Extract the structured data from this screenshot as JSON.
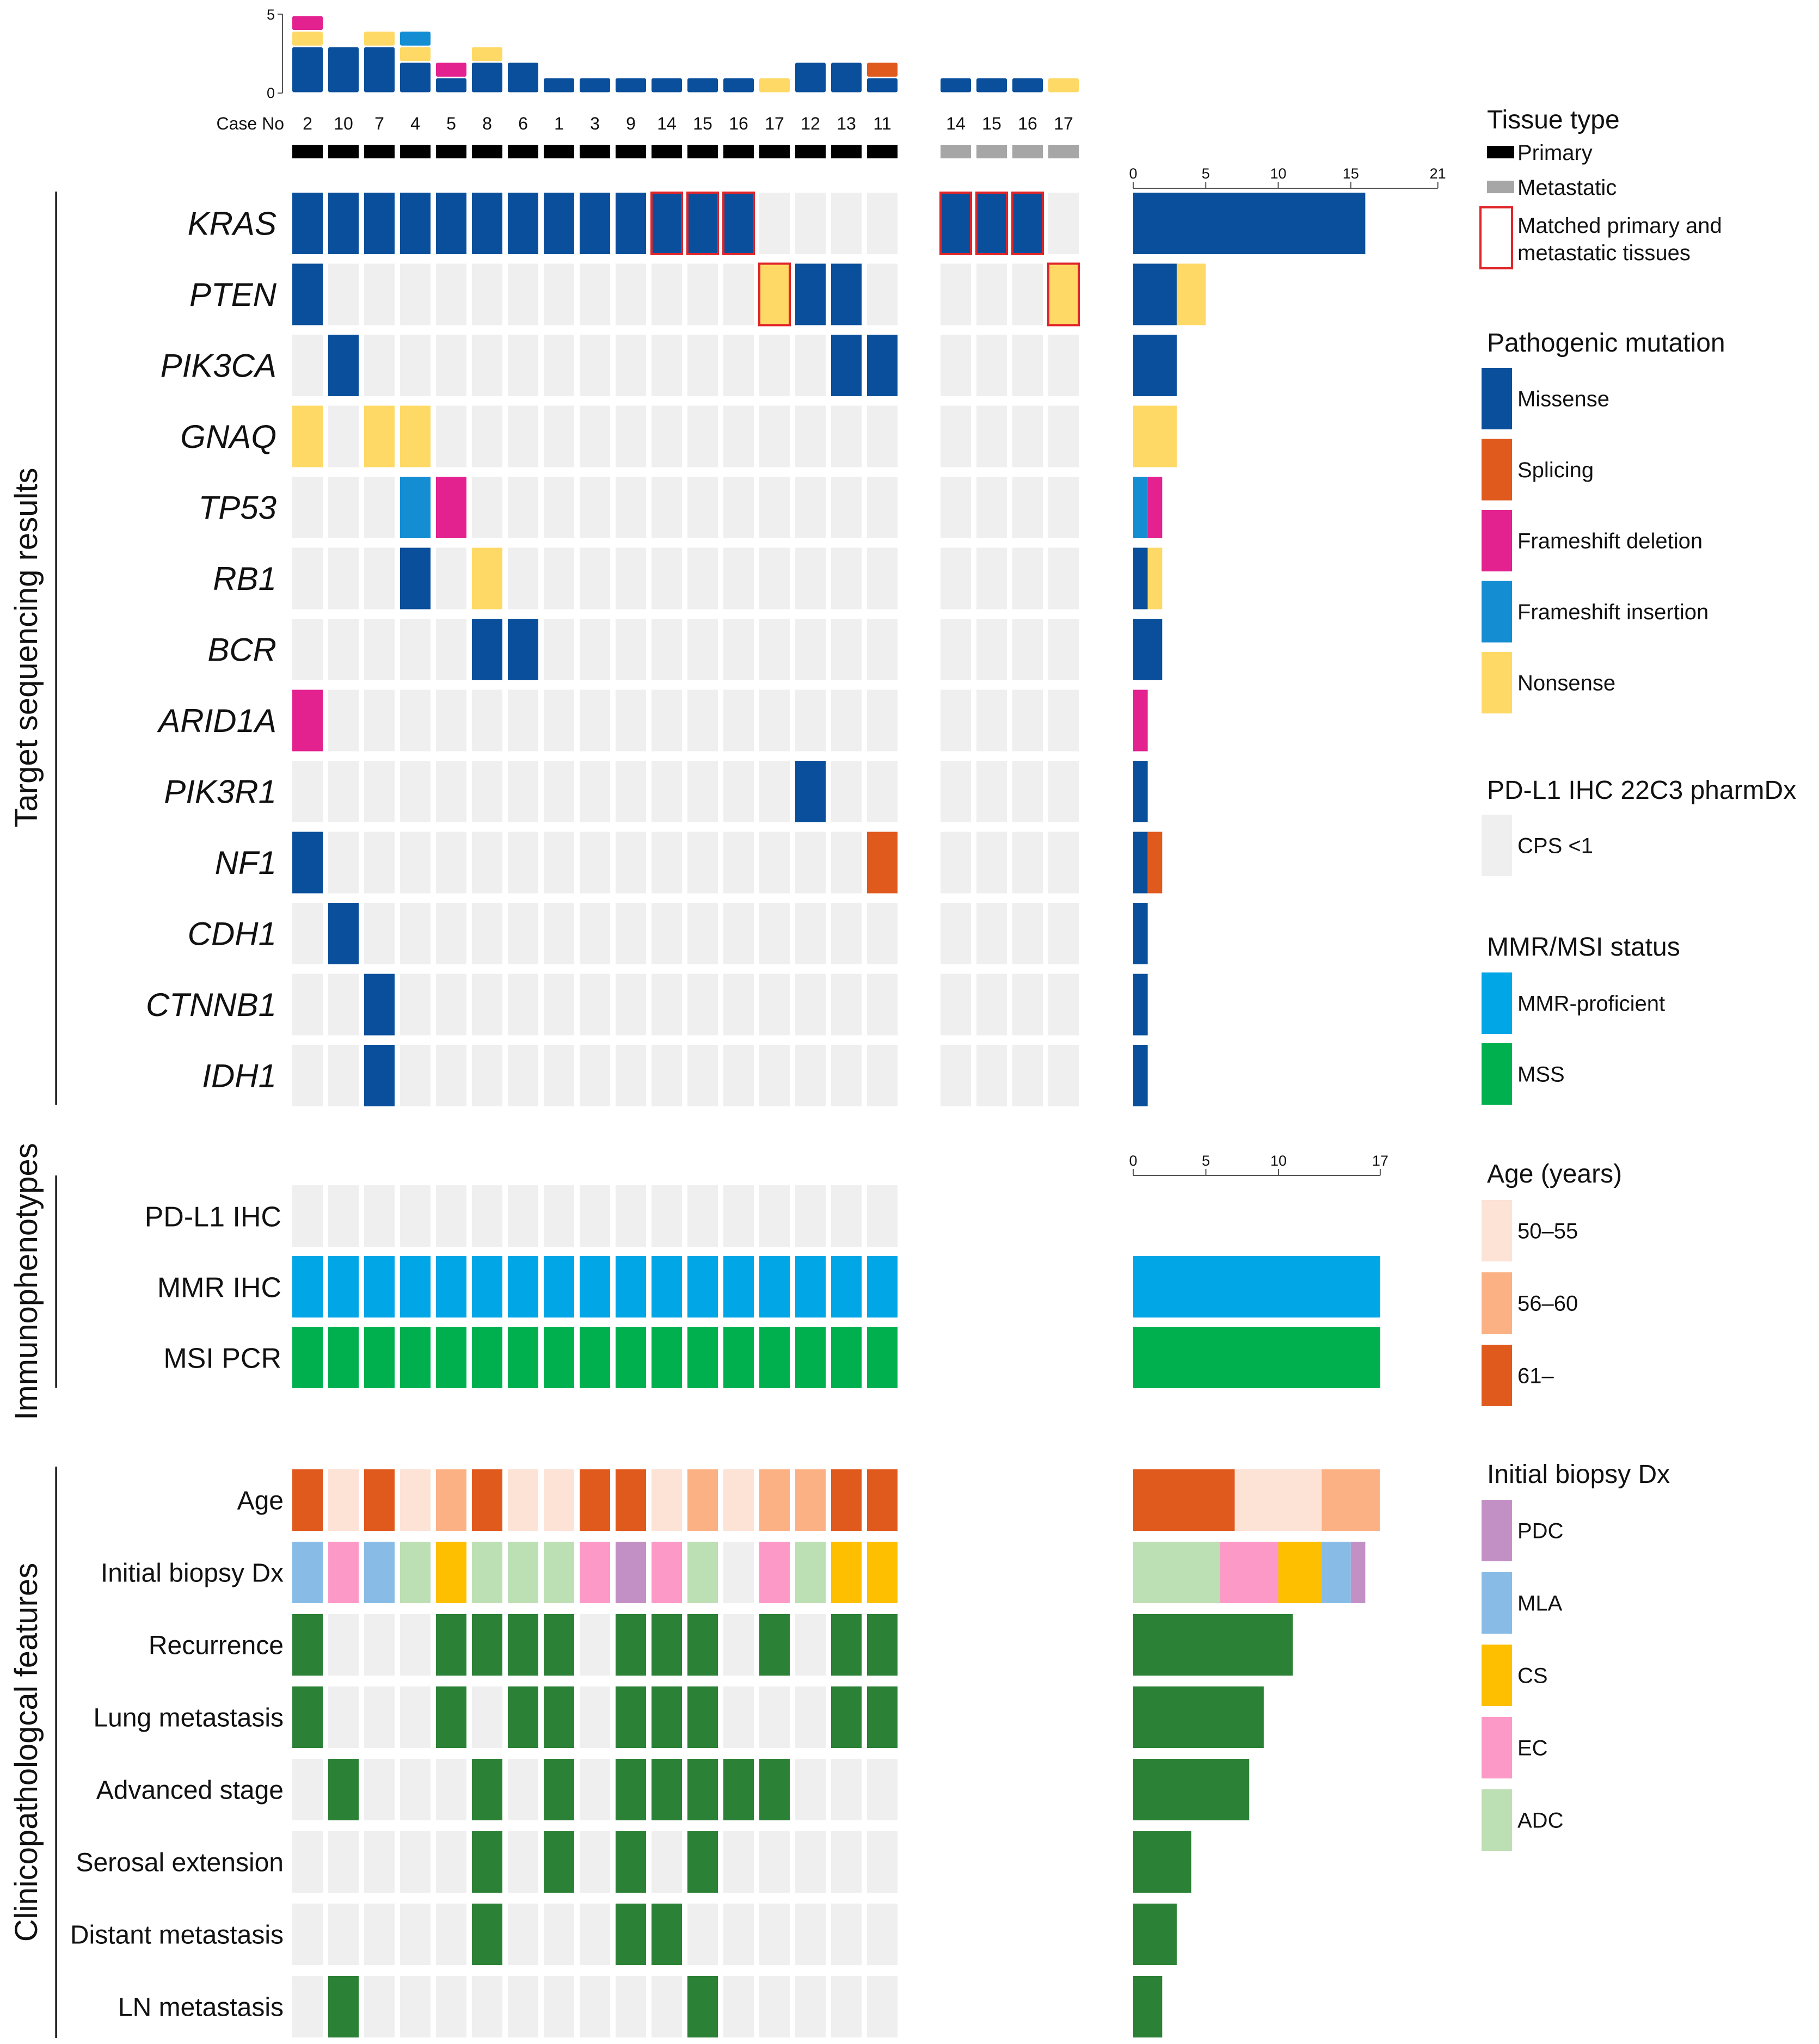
{
  "chart_data": {
    "type": "heatmap",
    "case_label": "Case No",
    "cases_primary": [
      "2",
      "10",
      "7",
      "4",
      "5",
      "8",
      "6",
      "1",
      "3",
      "9",
      "14",
      "15",
      "16",
      "17",
      "12",
      "13",
      "11"
    ],
    "cases_metastatic": [
      "14",
      "15",
      "16",
      "17"
    ],
    "top_axis": {
      "max": 5,
      "ticks": [
        "0",
        "5"
      ]
    },
    "top_counts": [
      {
        "case": "2",
        "segments": [
          {
            "type": "missense",
            "n": 3
          },
          {
            "type": "nonsense",
            "n": 1
          },
          {
            "type": "frameshift_deletion",
            "n": 1
          }
        ]
      },
      {
        "case": "10",
        "segments": [
          {
            "type": "missense",
            "n": 3
          }
        ]
      },
      {
        "case": "7",
        "segments": [
          {
            "type": "missense",
            "n": 3
          },
          {
            "type": "nonsense",
            "n": 1
          }
        ]
      },
      {
        "case": "4",
        "segments": [
          {
            "type": "missense",
            "n": 2
          },
          {
            "type": "nonsense",
            "n": 1
          },
          {
            "type": "frameshift_insertion",
            "n": 1
          }
        ]
      },
      {
        "case": "5",
        "segments": [
          {
            "type": "missense",
            "n": 1
          },
          {
            "type": "frameshift_deletion",
            "n": 1
          }
        ]
      },
      {
        "case": "8",
        "segments": [
          {
            "type": "missense",
            "n": 2
          },
          {
            "type": "nonsense",
            "n": 1
          }
        ]
      },
      {
        "case": "6",
        "segments": [
          {
            "type": "missense",
            "n": 2
          }
        ]
      },
      {
        "case": "1",
        "segments": [
          {
            "type": "missense",
            "n": 1
          }
        ]
      },
      {
        "case": "3",
        "segments": [
          {
            "type": "missense",
            "n": 1
          }
        ]
      },
      {
        "case": "9",
        "segments": [
          {
            "type": "missense",
            "n": 1
          }
        ]
      },
      {
        "case": "14",
        "segments": [
          {
            "type": "missense",
            "n": 1
          }
        ]
      },
      {
        "case": "15",
        "segments": [
          {
            "type": "missense",
            "n": 1
          }
        ]
      },
      {
        "case": "16",
        "segments": [
          {
            "type": "missense",
            "n": 1
          }
        ]
      },
      {
        "case": "17",
        "segments": [
          {
            "type": "nonsense",
            "n": 1
          }
        ]
      },
      {
        "case": "12",
        "segments": [
          {
            "type": "missense",
            "n": 2
          }
        ]
      },
      {
        "case": "13",
        "segments": [
          {
            "type": "missense",
            "n": 2
          }
        ]
      },
      {
        "case": "11",
        "segments": [
          {
            "type": "missense",
            "n": 1
          },
          {
            "type": "splicing",
            "n": 1
          }
        ]
      }
    ],
    "top_counts_metastatic": [
      {
        "case": "14",
        "segments": [
          {
            "type": "missense",
            "n": 1
          }
        ]
      },
      {
        "case": "15",
        "segments": [
          {
            "type": "missense",
            "n": 1
          }
        ]
      },
      {
        "case": "16",
        "segments": [
          {
            "type": "missense",
            "n": 1
          }
        ]
      },
      {
        "case": "17",
        "segments": [
          {
            "type": "nonsense",
            "n": 1
          }
        ]
      }
    ],
    "sections": {
      "genomic": "Target sequencing results",
      "immuno": "Immunophenotypes",
      "clinical": "Clinicopathologcal features"
    },
    "genes": [
      {
        "name": "KRAS",
        "primary": [
          "M",
          "M",
          "M",
          "M",
          "M",
          "M",
          "M",
          "M",
          "M",
          "M",
          "M",
          "M",
          "M",
          "",
          "",
          "",
          ""
        ],
        "metastatic": [
          "M",
          "M",
          "M",
          ""
        ],
        "bar": [
          {
            "type": "missense",
            "n": 16
          }
        ]
      },
      {
        "name": "PTEN",
        "primary": [
          "M",
          "",
          "",
          "",
          "",
          "",
          "",
          "",
          "",
          "",
          "",
          "",
          "",
          "N",
          "M",
          "M",
          ""
        ],
        "metastatic": [
          "",
          "",
          "",
          "N"
        ],
        "bar": [
          {
            "type": "missense",
            "n": 3
          },
          {
            "type": "nonsense",
            "n": 2
          }
        ]
      },
      {
        "name": "PIK3CA",
        "primary": [
          "",
          "M",
          "",
          "",
          "",
          "",
          "",
          "",
          "",
          "",
          "",
          "",
          "",
          "",
          "",
          "M",
          "M"
        ],
        "metastatic": [
          "",
          "",
          "",
          ""
        ],
        "bar": [
          {
            "type": "missense",
            "n": 3
          }
        ]
      },
      {
        "name": "GNAQ",
        "primary": [
          "N",
          "",
          "N",
          "N",
          "",
          "",
          "",
          "",
          "",
          "",
          "",
          "",
          "",
          "",
          "",
          "",
          ""
        ],
        "metastatic": [
          "",
          "",
          "",
          ""
        ],
        "bar": [
          {
            "type": "nonsense",
            "n": 3
          }
        ]
      },
      {
        "name": "TP53",
        "primary": [
          "",
          "",
          "",
          "I",
          "D",
          "",
          "",
          "",
          "",
          "",
          "",
          "",
          "",
          "",
          "",
          "",
          ""
        ],
        "metastatic": [
          "",
          "",
          "",
          ""
        ],
        "bar": [
          {
            "type": "frameshift_insertion",
            "n": 1
          },
          {
            "type": "frameshift_deletion",
            "n": 1
          }
        ]
      },
      {
        "name": "RB1",
        "primary": [
          "",
          "",
          "",
          "M",
          "",
          "N",
          "",
          "",
          "",
          "",
          "",
          "",
          "",
          "",
          "",
          "",
          ""
        ],
        "metastatic": [
          "",
          "",
          "",
          ""
        ],
        "bar": [
          {
            "type": "missense",
            "n": 1
          },
          {
            "type": "nonsense",
            "n": 1
          }
        ]
      },
      {
        "name": "BCR",
        "primary": [
          "",
          "",
          "",
          "",
          "",
          "M",
          "M",
          "",
          "",
          "",
          "",
          "",
          "",
          "",
          "",
          "",
          ""
        ],
        "metastatic": [
          "",
          "",
          "",
          ""
        ],
        "bar": [
          {
            "type": "missense",
            "n": 2
          }
        ]
      },
      {
        "name": "ARID1A",
        "primary": [
          "D",
          "",
          "",
          "",
          "",
          "",
          "",
          "",
          "",
          "",
          "",
          "",
          "",
          "",
          "",
          "",
          ""
        ],
        "metastatic": [
          "",
          "",
          "",
          ""
        ],
        "bar": [
          {
            "type": "frameshift_deletion",
            "n": 1
          }
        ]
      },
      {
        "name": "PIK3R1",
        "primary": [
          "",
          "",
          "",
          "",
          "",
          "",
          "",
          "",
          "",
          "",
          "",
          "",
          "",
          "",
          "M",
          "",
          ""
        ],
        "metastatic": [
          "",
          "",
          "",
          ""
        ],
        "bar": [
          {
            "type": "missense",
            "n": 1
          }
        ]
      },
      {
        "name": "NF1",
        "primary": [
          "M",
          "",
          "",
          "",
          "",
          "",
          "",
          "",
          "",
          "",
          "",
          "",
          "",
          "",
          "",
          "",
          "S"
        ],
        "metastatic": [
          "",
          "",
          "",
          ""
        ],
        "bar": [
          {
            "type": "missense",
            "n": 1
          },
          {
            "type": "splicing",
            "n": 1
          }
        ]
      },
      {
        "name": "CDH1",
        "primary": [
          "",
          "M",
          "",
          "",
          "",
          "",
          "",
          "",
          "",
          "",
          "",
          "",
          "",
          "",
          "",
          "",
          ""
        ],
        "metastatic": [
          "",
          "",
          "",
          ""
        ],
        "bar": [
          {
            "type": "missense",
            "n": 1
          }
        ]
      },
      {
        "name": "CTNNB1",
        "primary": [
          "",
          "",
          "M",
          "",
          "",
          "",
          "",
          "",
          "",
          "",
          "",
          "",
          "",
          "",
          "",
          "",
          ""
        ],
        "metastatic": [
          "",
          "",
          "",
          ""
        ],
        "bar": [
          {
            "type": "missense",
            "n": 1
          }
        ]
      },
      {
        "name": "IDH1",
        "primary": [
          "",
          "",
          "M",
          "",
          "",
          "",
          "",
          "",
          "",
          "",
          "",
          "",
          "",
          "",
          "",
          "",
          ""
        ],
        "metastatic": [
          "",
          "",
          "",
          ""
        ],
        "bar": [
          {
            "type": "missense",
            "n": 1
          }
        ]
      }
    ],
    "matched_cells": [
      {
        "gene": "KRAS",
        "cases": [
          "14",
          "15",
          "16"
        ]
      },
      {
        "gene": "PTEN",
        "cases": [
          "17"
        ]
      }
    ],
    "gene_bar_axis": {
      "max": 21,
      "ticks": [
        "0",
        "5",
        "10",
        "15",
        "21"
      ]
    },
    "immuno": [
      {
        "name": "PD-L1 IHC",
        "value": "cps_lt1",
        "bar": [
          {
            "type": "cps_lt1",
            "n": 0
          }
        ]
      },
      {
        "name": "MMR IHC",
        "value": "mmr_proficient",
        "bar": [
          {
            "type": "mmr_proficient",
            "n": 17
          }
        ]
      },
      {
        "name": "MSI PCR",
        "value": "mss",
        "bar": [
          {
            "type": "mss",
            "n": 17
          }
        ]
      }
    ],
    "immuno_bar_axis": {
      "max": 17,
      "ticks": [
        "0",
        "5",
        "10",
        "17"
      ]
    },
    "clinical": [
      {
        "name": "Age",
        "values": [
          "61",
          "50",
          "61",
          "50",
          "56",
          "61",
          "50",
          "50",
          "61",
          "61",
          "50",
          "56",
          "50",
          "56",
          "56",
          "61",
          "61"
        ],
        "bar": [
          {
            "type": "61",
            "n": 7
          },
          {
            "type": "50",
            "n": 6
          },
          {
            "type": "56",
            "n": 4
          }
        ]
      },
      {
        "name": "Initial biopsy Dx",
        "values": [
          "MLA",
          "EC",
          "MLA",
          "ADC",
          "CS",
          "ADC",
          "ADC",
          "ADC",
          "EC",
          "PDC",
          "EC",
          "ADC",
          "",
          "EC",
          "ADC",
          "CS",
          "CS"
        ],
        "bar": [
          {
            "type": "ADC",
            "n": 6
          },
          {
            "type": "EC",
            "n": 4
          },
          {
            "type": "CS",
            "n": 3
          },
          {
            "type": "MLA",
            "n": 2
          },
          {
            "type": "PDC",
            "n": 1
          }
        ]
      },
      {
        "name": "Recurrence",
        "values": [
          1,
          0,
          0,
          0,
          1,
          1,
          1,
          1,
          0,
          1,
          1,
          1,
          0,
          1,
          0,
          1,
          1
        ],
        "bar": [
          {
            "type": "yes",
            "n": 11
          }
        ]
      },
      {
        "name": "Lung metastasis",
        "values": [
          1,
          0,
          0,
          0,
          1,
          0,
          1,
          1,
          0,
          1,
          1,
          1,
          0,
          0,
          0,
          1,
          1
        ],
        "bar": [
          {
            "type": "yes",
            "n": 9
          }
        ]
      },
      {
        "name": "Advanced stage",
        "values": [
          0,
          1,
          0,
          0,
          0,
          1,
          0,
          1,
          0,
          1,
          1,
          1,
          1,
          1,
          0,
          0,
          0
        ],
        "bar": [
          {
            "type": "yes",
            "n": 8
          }
        ]
      },
      {
        "name": "Serosal extension",
        "values": [
          0,
          0,
          0,
          0,
          0,
          1,
          0,
          1,
          0,
          1,
          0,
          1,
          0,
          0,
          0,
          0,
          0
        ],
        "bar": [
          {
            "type": "yes",
            "n": 4
          }
        ]
      },
      {
        "name": "Distant metastasis",
        "values": [
          0,
          0,
          0,
          0,
          0,
          1,
          0,
          0,
          0,
          1,
          1,
          0,
          0,
          0,
          0,
          0,
          0
        ],
        "bar": [
          {
            "type": "yes",
            "n": 3
          }
        ]
      },
      {
        "name": "LN metastasis",
        "values": [
          0,
          1,
          0,
          0,
          0,
          0,
          0,
          0,
          0,
          0,
          0,
          1,
          0,
          0,
          0,
          0,
          0
        ],
        "bar": [
          {
            "type": "yes",
            "n": 2
          }
        ]
      }
    ],
    "legend": {
      "tissue": {
        "title": "Tissue type",
        "primary": "Primary",
        "metastatic": "Metastatic",
        "matched": "Matched primary and metastatic tissues"
      },
      "mutation": {
        "title": "Pathogenic mutation",
        "items": [
          {
            "key": "missense",
            "label": "Missense"
          },
          {
            "key": "splicing",
            "label": "Splicing"
          },
          {
            "key": "frameshift_deletion",
            "label": "Frameshift deletion"
          },
          {
            "key": "frameshift_insertion",
            "label": "Frameshift insertion"
          },
          {
            "key": "nonsense",
            "label": "Nonsense"
          }
        ]
      },
      "pdl1": {
        "title": "PD-L1 IHC 22C3 pharmDx",
        "items": [
          {
            "key": "cps_lt1",
            "label": "CPS <1"
          }
        ]
      },
      "mmr": {
        "title": "MMR/MSI status",
        "items": [
          {
            "key": "mmr_proficient",
            "label": "MMR-proficient"
          },
          {
            "key": "mss",
            "label": "MSS"
          }
        ]
      },
      "age": {
        "title": "Age (years)",
        "items": [
          {
            "key": "50",
            "label": "50–55"
          },
          {
            "key": "56",
            "label": "56–60"
          },
          {
            "key": "61",
            "label": "61–"
          }
        ]
      },
      "biopsy": {
        "title": "Initial biopsy Dx",
        "items": [
          {
            "key": "PDC",
            "label": "PDC"
          },
          {
            "key": "MLA",
            "label": "MLA"
          },
          {
            "key": "CS",
            "label": "CS"
          },
          {
            "key": "EC",
            "label": "EC"
          },
          {
            "key": "ADC",
            "label": "ADC"
          }
        ]
      }
    },
    "colors": {
      "missense": "#0a4f9b",
      "splicing": "#e05a1e",
      "frameshift_deletion": "#e3218f",
      "frameshift_insertion": "#148dd3",
      "nonsense": "#fed966",
      "cps_lt1": "#efefef",
      "empty": "#efefef",
      "mmr_proficient": "#00a6e5",
      "mss": "#00b04f",
      "50": "#fde2d6",
      "56": "#fbb184",
      "61": "#e05a1e",
      "PDC": "#c390c5",
      "MLA": "#88bce6",
      "CS": "#fdbf00",
      "EC": "#fc99c7",
      "ADC": "#bcdfb3",
      "yes": "#2b8135",
      "primary": "#000000",
      "metastatic": "#a6a6a6",
      "matched": "#e0252a"
    }
  }
}
